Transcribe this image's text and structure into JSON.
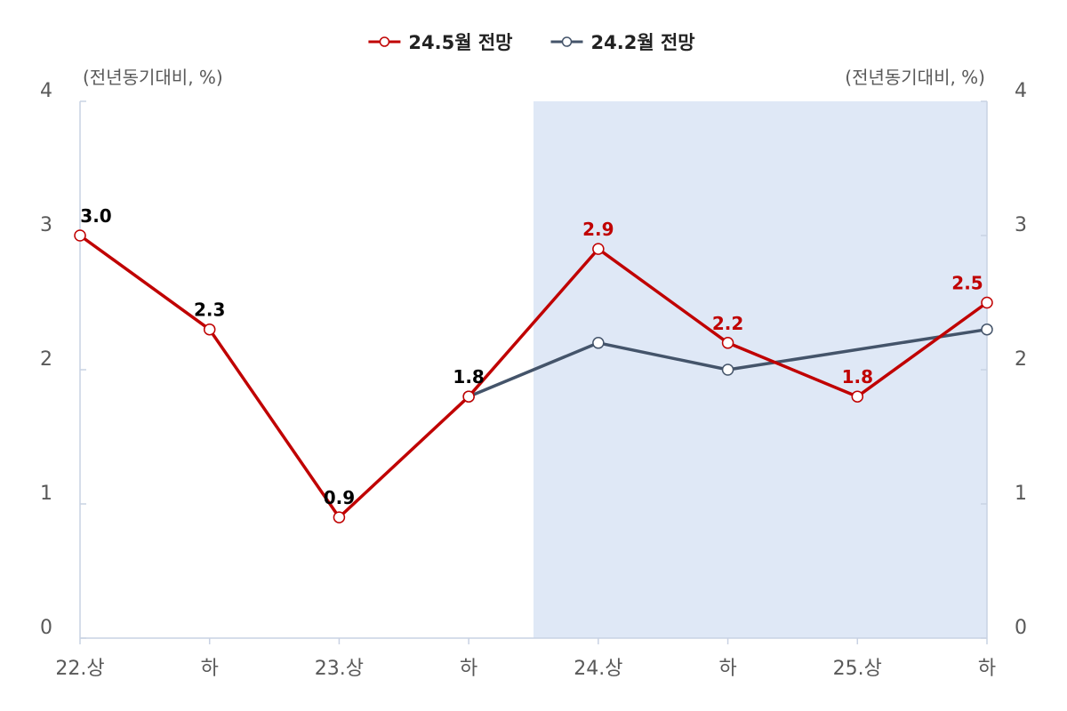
{
  "chart_data": {
    "type": "line",
    "categories": [
      "22.상",
      "하",
      "23.상",
      "하",
      "24.상",
      "하",
      "25.상",
      "하"
    ],
    "series": [
      {
        "name": "24.5월 전망",
        "color": "#c00000",
        "marker": "circle",
        "values": [
          3.0,
          2.3,
          0.9,
          1.8,
          2.9,
          2.2,
          1.8,
          2.5
        ],
        "labels": [
          "3.0",
          "2.3",
          "0.9",
          "1.8",
          "2.9",
          "2.2",
          "1.8",
          "2.5"
        ],
        "label_colors": [
          "#000000",
          "#000000",
          "#000000",
          "#000000",
          "#c00000",
          "#c00000",
          "#c00000",
          "#c00000"
        ]
      },
      {
        "name": "24.2월 전망",
        "color": "#44546a",
        "marker": "circle",
        "values": [
          null,
          null,
          null,
          1.8,
          2.2,
          2.0,
          null,
          2.3
        ]
      }
    ],
    "y_left": {
      "label": "(전년동기대비, %)",
      "ylim": [
        0,
        4
      ],
      "ticks": [
        0,
        1,
        2,
        3,
        4
      ]
    },
    "y_right": {
      "label": "(전년동기대비, %)",
      "ylim": [
        0,
        4
      ],
      "ticks": [
        0,
        1,
        2,
        3,
        4
      ]
    },
    "grid": false,
    "legend_position": "top-center",
    "shade": {
      "color": "#dfe8f6",
      "from_index": 4,
      "to_index": 7
    }
  }
}
